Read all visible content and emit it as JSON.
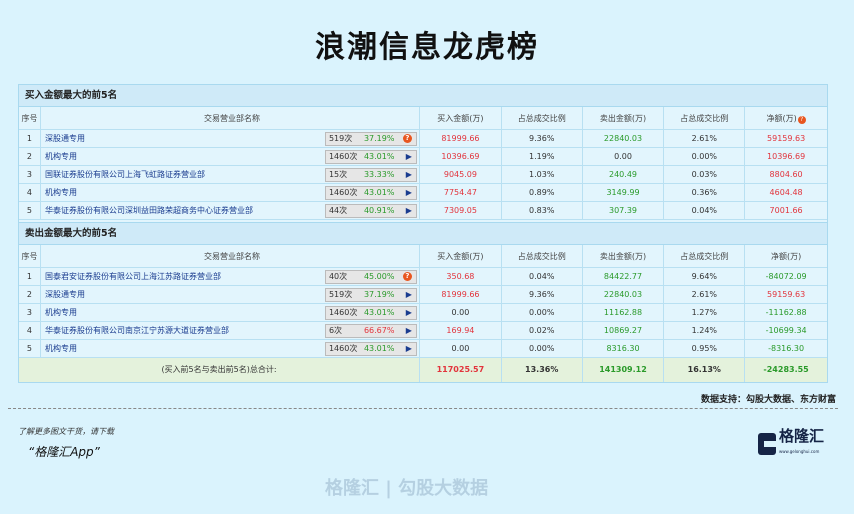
{
  "title": "浪潮信息龙虎榜",
  "buy_section": {
    "title": "买入金额最大的前5名",
    "headers": [
      "序号",
      "交易营业部名称",
      "买入金额(万)",
      "占总成交比例",
      "卖出金额(万)",
      "占总成交比例",
      "净额(万)"
    ],
    "rows": [
      {
        "no": "1",
        "name": "深股通专用",
        "times": "519次",
        "rate": "37.19%",
        "rate_color": "green",
        "icon": "question",
        "buy": "81999.66",
        "buy_pct": "9.36%",
        "sell": "22840.03",
        "sell_pct": "2.61%",
        "net": "59159.63",
        "net_sign": "pos"
      },
      {
        "no": "2",
        "name": "机构专用",
        "times": "1460次",
        "rate": "43.01%",
        "rate_color": "green",
        "icon": "arrow",
        "buy": "10396.69",
        "buy_pct": "1.19%",
        "sell": "0.00",
        "sell_pct": "0.00%",
        "net": "10396.69",
        "net_sign": "pos"
      },
      {
        "no": "3",
        "name": "国联证券股份有限公司上海飞虹路证券营业部",
        "times": "15次",
        "rate": "33.33%",
        "rate_color": "green",
        "icon": "arrow",
        "buy": "9045.09",
        "buy_pct": "1.03%",
        "sell": "240.49",
        "sell_pct": "0.03%",
        "net": "8804.60",
        "net_sign": "pos"
      },
      {
        "no": "4",
        "name": "机构专用",
        "times": "1460次",
        "rate": "43.01%",
        "rate_color": "green",
        "icon": "arrow",
        "buy": "7754.47",
        "buy_pct": "0.89%",
        "sell": "3149.99",
        "sell_pct": "0.36%",
        "net": "4604.48",
        "net_sign": "pos"
      },
      {
        "no": "5",
        "name": "华泰证券股份有限公司深圳益田路荣超商务中心证券营业部",
        "times": "44次",
        "rate": "40.91%",
        "rate_color": "green",
        "icon": "arrow",
        "buy": "7309.05",
        "buy_pct": "0.83%",
        "sell": "307.39",
        "sell_pct": "0.04%",
        "net": "7001.66",
        "net_sign": "pos"
      }
    ]
  },
  "sell_section": {
    "title": "卖出金额最大的前5名",
    "headers": [
      "序号",
      "交易营业部名称",
      "买入金额(万)",
      "占总成交比例",
      "卖出金额(万)",
      "占总成交比例",
      "净额(万)"
    ],
    "rows": [
      {
        "no": "1",
        "name": "国泰君安证券股份有限公司上海江苏路证券营业部",
        "times": "40次",
        "rate": "45.00%",
        "rate_color": "green",
        "icon": "question",
        "buy": "350.68",
        "buy_pct": "0.04%",
        "sell": "84422.77",
        "sell_pct": "9.64%",
        "net": "-84072.09",
        "net_sign": "neg"
      },
      {
        "no": "2",
        "name": "深股通专用",
        "times": "519次",
        "rate": "37.19%",
        "rate_color": "green",
        "icon": "arrow",
        "buy": "81999.66",
        "buy_pct": "9.36%",
        "sell": "22840.03",
        "sell_pct": "2.61%",
        "net": "59159.63",
        "net_sign": "pos"
      },
      {
        "no": "3",
        "name": "机构专用",
        "times": "1460次",
        "rate": "43.01%",
        "rate_color": "green",
        "icon": "arrow",
        "buy": "0.00",
        "buy_pct": "0.00%",
        "sell": "11162.88",
        "sell_pct": "1.27%",
        "net": "-11162.88",
        "net_sign": "neg"
      },
      {
        "no": "4",
        "name": "华泰证券股份有限公司南京江宁苏源大道证券营业部",
        "times": "6次",
        "rate": "66.67%",
        "rate_color": "red",
        "icon": "arrow",
        "buy": "169.94",
        "buy_pct": "0.02%",
        "sell": "10869.27",
        "sell_pct": "1.24%",
        "net": "-10699.34",
        "net_sign": "neg"
      },
      {
        "no": "5",
        "name": "机构专用",
        "times": "1460次",
        "rate": "43.01%",
        "rate_color": "green",
        "icon": "arrow",
        "buy": "0.00",
        "buy_pct": "0.00%",
        "sell": "8316.30",
        "sell_pct": "0.95%",
        "net": "-8316.30",
        "net_sign": "neg"
      }
    ]
  },
  "total": {
    "label": "(买入前5名与卖出前5名)总合计:",
    "buy": "117025.57",
    "buy_pct": "13.36%",
    "sell": "141309.12",
    "sell_pct": "16.13%",
    "net": "-24283.55"
  },
  "watermark": "格隆汇 | 勾股大数据",
  "support": "数据支持：勾股大数据、东方财富",
  "footer": {
    "more": "了解更多图文干货，请下载",
    "app": "“格隆汇App”",
    "logo_text": "格隆汇",
    "logo_url": "www.gelonghui.com"
  },
  "colors": {
    "background": "#daf3fd",
    "positive": "#e2343c",
    "negative": "#2a9a2a"
  }
}
